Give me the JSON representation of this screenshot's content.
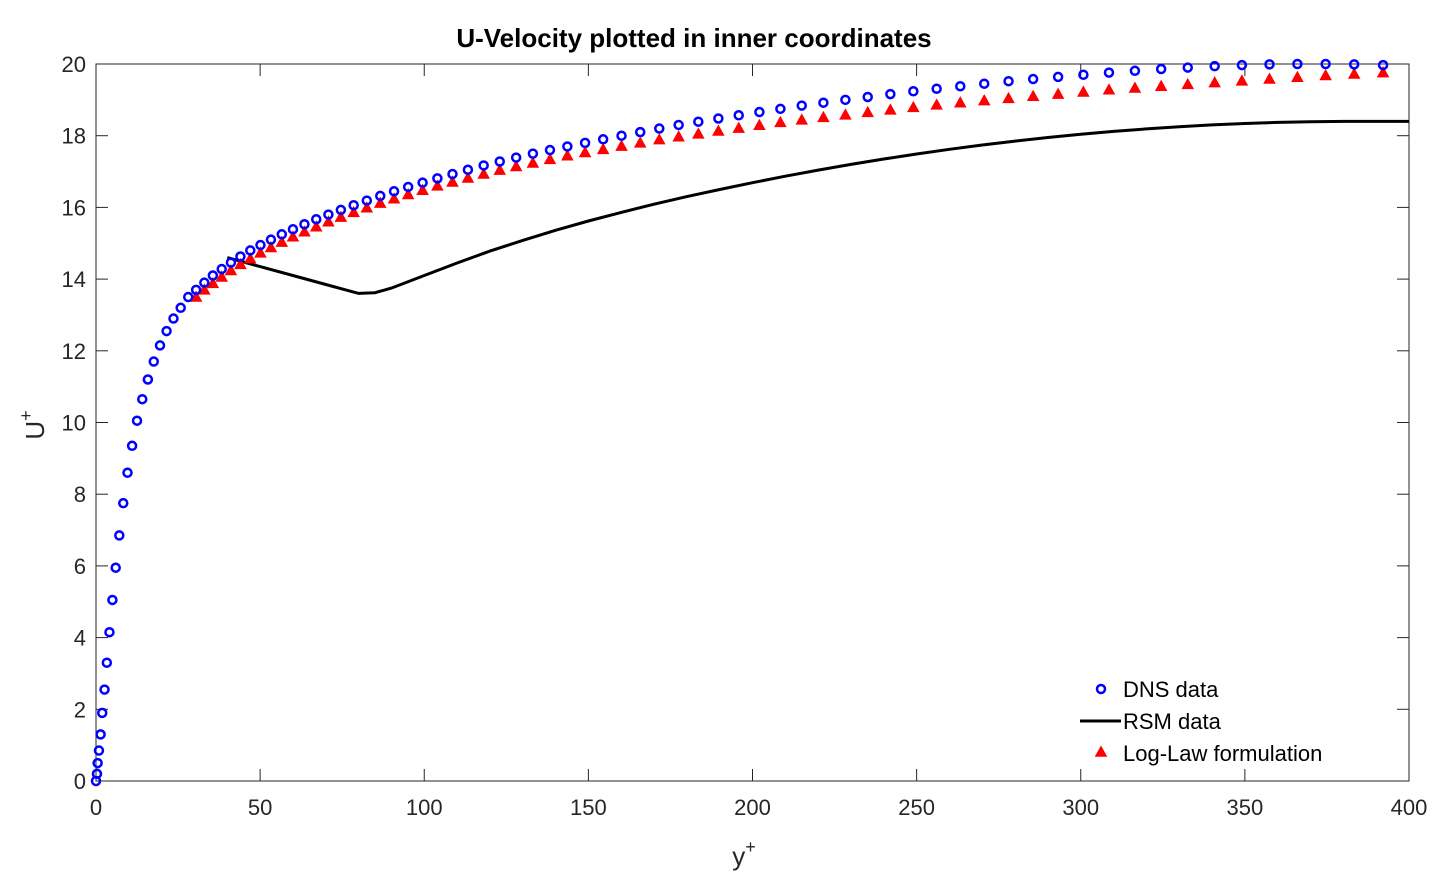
{
  "chart_data": {
    "type": "scatter",
    "title": "U-Velocity plotted in inner coordinates",
    "xlabel": "y",
    "xlabel_sup": "+",
    "ylabel": "U",
    "ylabel_sup": "+",
    "xlim": [
      0,
      400
    ],
    "ylim": [
      0,
      20
    ],
    "xticks": [
      0,
      50,
      100,
      150,
      200,
      250,
      300,
      350,
      400
    ],
    "yticks": [
      0,
      2,
      4,
      6,
      8,
      10,
      12,
      14,
      16,
      18,
      20
    ],
    "grid": false,
    "legend_position": "bottom-right",
    "series": [
      {
        "name": "DNS data",
        "marker": "circle",
        "color": "#0000ff",
        "x": [
          0.0,
          0.3,
          0.5,
          0.9,
          1.4,
          1.9,
          2.6,
          3.3,
          4.1,
          5.0,
          6.0,
          7.1,
          8.3,
          9.6,
          11.0,
          12.5,
          14.1,
          15.8,
          17.6,
          19.5,
          21.5,
          23.6,
          25.8,
          28.1,
          30.5,
          33.0,
          35.6,
          38.3,
          41.1,
          44.0,
          47.0,
          50.1,
          53.3,
          56.6,
          60.0,
          63.5,
          67.1,
          70.8,
          74.6,
          78.5,
          82.5,
          86.6,
          90.8,
          95.1,
          99.5,
          104,
          108.6,
          113.3,
          118.1,
          123,
          128,
          133.1,
          138.3,
          143.6,
          149,
          154.5,
          160.1,
          165.8,
          171.6,
          177.5,
          183.5,
          189.6,
          195.8,
          202.1,
          208.5,
          215,
          221.6,
          228.3,
          235.1,
          242,
          249,
          256.1,
          263.3,
          270.6,
          278,
          285.5,
          293.1,
          300.8,
          308.6,
          316.5,
          324.5,
          332.6,
          340.8,
          349.1,
          357.5,
          366,
          374.6,
          383.3,
          392.1
        ],
        "y": [
          0.0,
          0.2,
          0.5,
          0.85,
          1.3,
          1.9,
          2.55,
          3.3,
          4.15,
          5.05,
          5.95,
          6.85,
          7.75,
          8.6,
          9.35,
          10.05,
          10.65,
          11.2,
          11.7,
          12.15,
          12.55,
          12.9,
          13.2,
          13.5,
          13.7,
          13.9,
          14.1,
          14.28,
          14.46,
          14.63,
          14.8,
          14.95,
          15.1,
          15.25,
          15.39,
          15.53,
          15.67,
          15.8,
          15.93,
          16.06,
          16.19,
          16.32,
          16.45,
          16.57,
          16.69,
          16.81,
          16.93,
          17.05,
          17.17,
          17.28,
          17.39,
          17.5,
          17.6,
          17.7,
          17.8,
          17.9,
          18.0,
          18.1,
          18.2,
          18.3,
          18.39,
          18.48,
          18.57,
          18.66,
          18.75,
          18.84,
          18.92,
          19.0,
          19.08,
          19.16,
          19.24,
          19.31,
          19.38,
          19.45,
          19.52,
          19.58,
          19.64,
          19.7,
          19.76,
          19.81,
          19.86,
          19.9,
          19.94,
          19.97,
          19.99,
          20.0,
          20.0,
          19.99,
          19.97
        ]
      },
      {
        "name": "RSM data",
        "marker": "line",
        "color": "#000000",
        "x": [
          40,
          50,
          60,
          70,
          80,
          85,
          90,
          100,
          110,
          120,
          130,
          140,
          150,
          160,
          170,
          180,
          190,
          200,
          210,
          220,
          230,
          240,
          250,
          260,
          270,
          280,
          290,
          300,
          310,
          320,
          330,
          340,
          350,
          360,
          370,
          380,
          390,
          400
        ],
        "y": [
          14.6,
          14.35,
          14.1,
          13.85,
          13.6,
          13.62,
          13.75,
          14.1,
          14.45,
          14.78,
          15.08,
          15.36,
          15.62,
          15.86,
          16.09,
          16.3,
          16.5,
          16.69,
          16.87,
          17.04,
          17.2,
          17.35,
          17.49,
          17.62,
          17.74,
          17.85,
          17.95,
          18.04,
          18.12,
          18.19,
          18.25,
          18.3,
          18.34,
          18.37,
          18.39,
          18.4,
          18.4,
          18.4
        ]
      },
      {
        "name": "Log-Law formulation",
        "marker": "triangle",
        "color": "#ff0000",
        "x": [
          30.5,
          33.0,
          35.6,
          38.3,
          41.1,
          44.0,
          47.0,
          50.1,
          53.3,
          56.6,
          60.0,
          63.5,
          67.1,
          70.8,
          74.6,
          78.5,
          82.5,
          86.6,
          90.8,
          95.1,
          99.5,
          104,
          108.6,
          113.3,
          118.1,
          123,
          128,
          133.1,
          138.3,
          143.6,
          149,
          154.5,
          160.1,
          165.8,
          171.6,
          177.5,
          183.5,
          189.6,
          195.8,
          202.1,
          208.5,
          215,
          221.6,
          228.3,
          235.1,
          242,
          249,
          256.1,
          263.3,
          270.6,
          278,
          285.5,
          293.1,
          300.8,
          308.6,
          316.5,
          324.5,
          332.6,
          340.8,
          349.1,
          357.5,
          366,
          374.6,
          383.3,
          392.1,
          401
        ],
        "y": [
          13.5,
          13.7,
          13.88,
          14.06,
          14.24,
          14.41,
          14.57,
          14.73,
          14.88,
          15.03,
          15.18,
          15.32,
          15.46,
          15.6,
          15.73,
          15.86,
          15.99,
          16.12,
          16.24,
          16.36,
          16.48,
          16.6,
          16.71,
          16.82,
          16.93,
          17.04,
          17.14,
          17.24,
          17.34,
          17.44,
          17.53,
          17.62,
          17.71,
          17.8,
          17.89,
          17.97,
          18.05,
          18.13,
          18.21,
          18.29,
          18.37,
          18.44,
          18.51,
          18.58,
          18.65,
          18.72,
          18.79,
          18.86,
          18.92,
          18.98,
          19.04,
          19.1,
          19.16,
          19.22,
          19.28,
          19.33,
          19.38,
          19.43,
          19.48,
          19.53,
          19.58,
          19.63,
          19.68,
          19.72,
          19.76,
          19.8
        ]
      }
    ]
  }
}
